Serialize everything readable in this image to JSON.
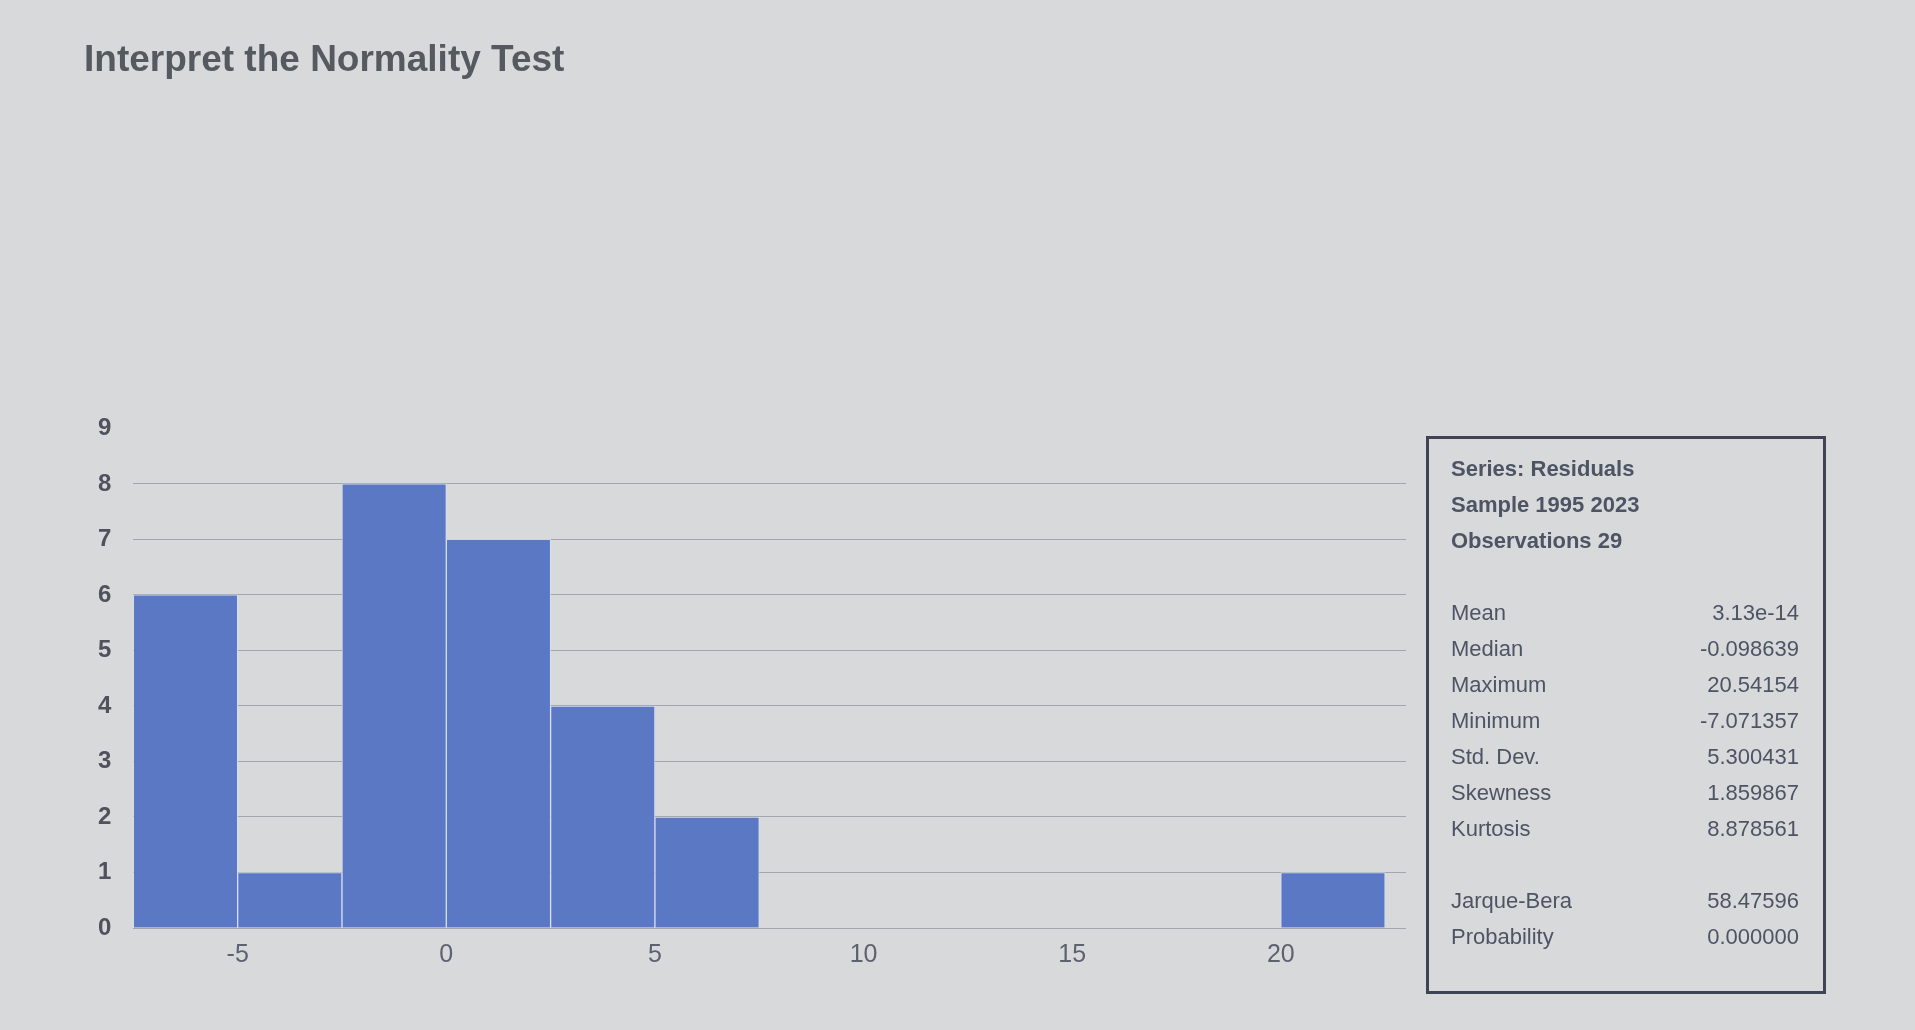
{
  "chart_data": {
    "type": "histogram",
    "title": "Interpret the Normality Test",
    "bins": [
      -7.5,
      -5,
      -2.5,
      0,
      2.5,
      5,
      7.5,
      10,
      12.5,
      15,
      17.5,
      20,
      22.5
    ],
    "values": [
      6,
      1,
      8,
      7,
      4,
      2,
      0,
      0,
      0,
      0,
      0,
      1
    ],
    "color": "#5a78c4",
    "xlim": [
      -7.5,
      23
    ],
    "xticks": [
      -5,
      0,
      5,
      10,
      15,
      20
    ],
    "ylim": [
      0,
      9
    ],
    "yticks": [
      0,
      1,
      2,
      3,
      4,
      5,
      6,
      7,
      8,
      9
    ],
    "grid": "y",
    "annotations": [
      "Series: Residuals",
      "Sample 1995 2023",
      "Observations 29",
      "Mean\t3.13e-14",
      "Median\t-0.098639",
      "Maximum\t20.54154",
      "Minimum\t-7.071357",
      "Std. Dev.\t5.300431",
      "Skewness\t1.859867",
      "Kurtosis\t8.878561",
      "Jarque-Bera\t58.47596",
      "Probability\t0.000000"
    ]
  }
}
